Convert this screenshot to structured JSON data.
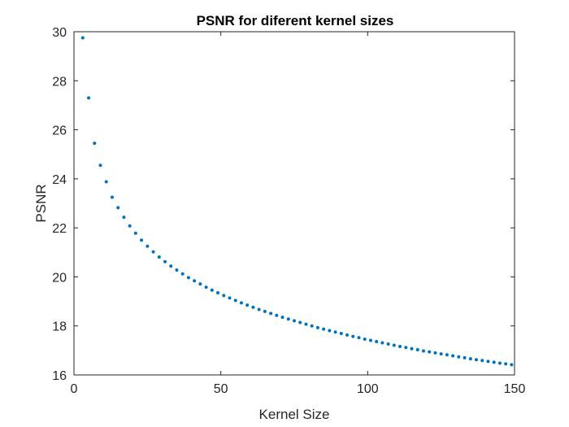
{
  "chart_data": {
    "type": "scatter",
    "title": "PSNR for diferent kernel sizes",
    "xlabel": "Kernel Size",
    "ylabel": "PSNR",
    "xlim": [
      0,
      150
    ],
    "ylim": [
      16,
      30
    ],
    "xticks": [
      0,
      50,
      100,
      150
    ],
    "yticks": [
      16,
      18,
      20,
      22,
      24,
      26,
      28,
      30
    ],
    "grid": false,
    "marker_color": "#0072BD",
    "series": [
      {
        "x": [
          3,
          5,
          7,
          9,
          11,
          13,
          15,
          17,
          19,
          21,
          23,
          25,
          27,
          29,
          31,
          33,
          35,
          37,
          39,
          41,
          43,
          45,
          47,
          49,
          51,
          53,
          55,
          57,
          59,
          61,
          63,
          65,
          67,
          69,
          71,
          73,
          75,
          77,
          79,
          81,
          83,
          85,
          87,
          89,
          91,
          93,
          95,
          97,
          99,
          101,
          103,
          105,
          107,
          109,
          111,
          113,
          115,
          117,
          119,
          121,
          123,
          125,
          127,
          129,
          131,
          133,
          135,
          137,
          139,
          141,
          143,
          145,
          147,
          149
        ],
        "y": [
          29.75,
          27.3,
          25.45,
          24.55,
          23.88,
          23.25,
          22.82,
          22.43,
          22.08,
          21.78,
          21.5,
          21.25,
          21.02,
          20.81,
          20.62,
          20.44,
          20.28,
          20.12,
          19.97,
          19.84,
          19.71,
          19.58,
          19.46,
          19.35,
          19.24,
          19.14,
          19.04,
          18.94,
          18.85,
          18.76,
          18.67,
          18.59,
          18.51,
          18.43,
          18.35,
          18.28,
          18.21,
          18.14,
          18.07,
          18.0,
          17.93,
          17.87,
          17.81,
          17.75,
          17.69,
          17.63,
          17.57,
          17.52,
          17.46,
          17.41,
          17.36,
          17.31,
          17.26,
          17.21,
          17.16,
          17.12,
          17.07,
          17.03,
          16.98,
          16.94,
          16.9,
          16.86,
          16.82,
          16.78,
          16.74,
          16.7,
          16.66,
          16.62,
          16.59,
          16.55,
          16.52,
          16.48,
          16.45,
          16.42
        ]
      }
    ]
  }
}
